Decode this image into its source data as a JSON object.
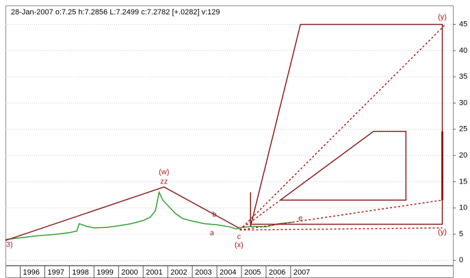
{
  "chart_data": {
    "type": "line",
    "title": "28-Jan-2007  o:7.25 h:7.2856 L:7.2499 c:7.2782 [+.0282] v:129",
    "xlim": [
      1995.4,
      2013.6
    ],
    "ylim": [
      -1.0,
      48.6
    ],
    "xticks": [
      1996,
      1997,
      1998,
      1999,
      2000,
      2001,
      2002,
      2003,
      2004,
      2005,
      2006,
      2007
    ],
    "yticks": [
      0,
      5,
      10,
      15,
      20,
      25,
      30,
      35,
      40,
      45
    ],
    "grid": true,
    "series": [
      {
        "color": "#2e9e2e",
        "x": [
          1995.4,
          1996.0,
          1996.5,
          1997.0,
          1997.5,
          1998.0,
          1998.3,
          1998.4,
          1998.7,
          1999.0,
          1999.5,
          2000.0,
          2000.5,
          2001.0,
          2001.3,
          2001.5,
          2001.65,
          2001.8,
          2002.0,
          2002.3,
          2002.6,
          2003.0,
          2003.5,
          2004.0,
          2004.5,
          2004.8,
          2005.0,
          2005.5,
          2006.0,
          2006.5,
          2007.08
        ],
        "values": [
          4.0,
          4.3,
          4.6,
          4.8,
          5.0,
          5.3,
          5.6,
          7.0,
          6.5,
          6.2,
          6.3,
          6.6,
          7.0,
          7.6,
          8.3,
          9.5,
          13.0,
          11.5,
          10.5,
          9.0,
          8.0,
          7.5,
          7.0,
          6.8,
          6.4,
          6.0,
          6.3,
          6.5,
          6.4,
          7.0,
          7.28
        ]
      }
    ],
    "lines": [
      {
        "color": "#8b1a1a",
        "dashed": false,
        "bold": false,
        "points": [
          [
            1995.4,
            3.8
          ],
          [
            2001.85,
            14.0
          ],
          [
            2004.93,
            6.1
          ]
        ]
      },
      {
        "color": "#8b1a1a",
        "dashed": false,
        "bold": false,
        "points": [
          [
            2005.37,
            6.5
          ],
          [
            2007.4,
            45
          ],
          [
            2013.17,
            45
          ],
          [
            2013.17,
            6.9
          ],
          [
            2005.37,
            6.9
          ]
        ]
      },
      {
        "color": "#8b1a1a",
        "dashed": false,
        "bold": false,
        "points": [
          [
            2006.58,
            11.5
          ],
          [
            2010.37,
            24.6
          ],
          [
            2011.69,
            24.6
          ],
          [
            2011.69,
            11.5
          ],
          [
            2006.58,
            11.5
          ]
        ]
      },
      {
        "color": "#8b1a1a",
        "dashed": false,
        "bold": false,
        "points": [
          [
            2005.37,
            13.0
          ],
          [
            2005.37,
            6.5
          ]
        ]
      },
      {
        "color": "#8b1a1a",
        "dashed": false,
        "bold": true,
        "points": [
          [
            2013.17,
            24.6
          ],
          [
            2013.17,
            11.5
          ]
        ]
      },
      {
        "color": "#b01818",
        "dashed": true,
        "bold": false,
        "points": [
          [
            2004.93,
            5.8
          ],
          [
            2013.3,
            45
          ]
        ]
      },
      {
        "color": "#b01818",
        "dashed": true,
        "bold": false,
        "points": [
          [
            2004.93,
            5.8
          ],
          [
            2013.17,
            11.5
          ]
        ]
      },
      {
        "color": "#b01818",
        "dashed": true,
        "bold": false,
        "points": [
          [
            2004.93,
            5.8
          ],
          [
            2013.17,
            6.2
          ]
        ]
      },
      {
        "color": "#b01818",
        "dashed": true,
        "bold": false,
        "points": [
          [
            2004.93,
            5.8
          ],
          [
            2006.58,
            11.5
          ]
        ]
      }
    ],
    "annotations": [
      {
        "text": "3)",
        "x": 1995.56,
        "y": 3.0
      },
      {
        "text": "(w)",
        "x": 2001.85,
        "y": 16.8
      },
      {
        "text": "zz",
        "x": 2001.85,
        "y": 15.0
      },
      {
        "text": "a",
        "x": 2003.8,
        "y": 5.2
      },
      {
        "text": "b",
        "x": 2003.9,
        "y": 8.7
      },
      {
        "text": "c",
        "x": 2004.9,
        "y": 4.5
      },
      {
        "text": "(x)",
        "x": 2004.9,
        "y": 2.9
      },
      {
        "text": "e",
        "x": 2007.4,
        "y": 8.0
      },
      {
        "text": "(y)",
        "x": 2013.17,
        "y": 46.4
      },
      {
        "text": "(y)",
        "x": 2013.17,
        "y": 5.4
      }
    ]
  }
}
